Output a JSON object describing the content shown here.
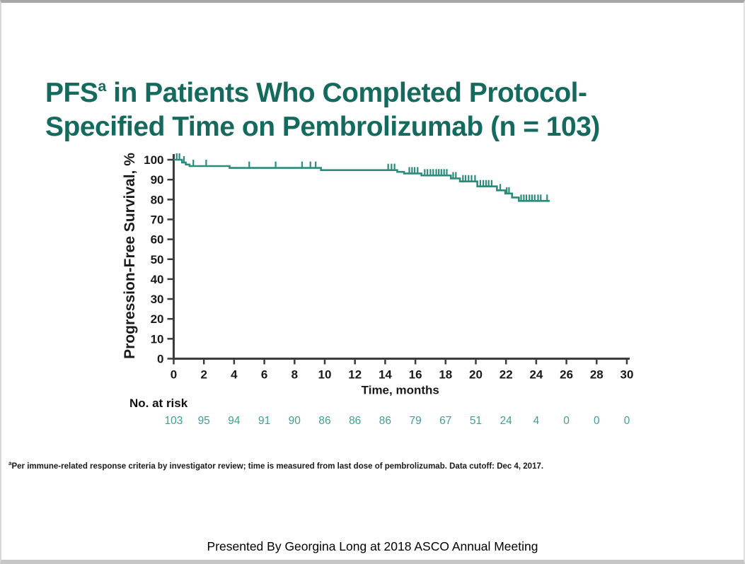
{
  "title": {
    "prefix": "PFS",
    "superscript": "a",
    "line1_rest": " in Patients Who Completed Protocol-",
    "line2": "Specified Time on Pembrolizumab (n = 103)"
  },
  "footnote": {
    "superscript": "a",
    "text": "Per immune-related response criteria by investigator review; time is measured from last dose of pembrolizumab. Data cutoff: Dec 4, 2017."
  },
  "footer": "Presented By Georgina Long at 2018 ASCO Annual Meeting",
  "colors": {
    "title_teal": "#156A5E",
    "curve_teal": "#2B8C7C",
    "risk_number_teal": "#3FA090",
    "axis": "#3C3C3C",
    "text": "#1A1A1A"
  },
  "chart_data": {
    "type": "line",
    "subtype": "kaplan-meier-step-curve",
    "title": "",
    "xlabel": "Time, months",
    "ylabel": "Progression-Free Survival, %",
    "xlim": [
      0,
      30
    ],
    "ylim": [
      0,
      100
    ],
    "xticks": [
      0,
      2,
      4,
      6,
      8,
      10,
      12,
      14,
      16,
      18,
      20,
      22,
      24,
      26,
      28,
      30
    ],
    "yticks": [
      0,
      10,
      20,
      30,
      40,
      50,
      60,
      70,
      80,
      90,
      100
    ],
    "grid": false,
    "legend": "none",
    "series": [
      {
        "name": "PFS",
        "color": "#2B8C7C",
        "steps": [
          [
            0,
            100
          ],
          [
            0.55,
            98.6
          ],
          [
            0.8,
            97.6
          ],
          [
            1.05,
            96.8
          ],
          [
            3.7,
            95.9
          ],
          [
            9.75,
            94.8
          ],
          [
            14.8,
            93.9
          ],
          [
            15.25,
            93.1
          ],
          [
            16.4,
            92.1
          ],
          [
            18.35,
            90.6
          ],
          [
            18.95,
            89.1
          ],
          [
            20.1,
            86.6
          ],
          [
            21.4,
            84.6
          ],
          [
            21.95,
            83.0
          ],
          [
            22.4,
            81.0
          ],
          [
            22.85,
            79.3
          ]
        ],
        "end_time": 24.9,
        "censor_marks": [
          [
            0.2,
            100
          ],
          [
            0.38,
            100
          ],
          [
            0.68,
            98.6
          ],
          [
            1.3,
            96.8
          ],
          [
            2.15,
            96.8
          ],
          [
            5.0,
            95.9
          ],
          [
            6.75,
            95.9
          ],
          [
            8.5,
            95.9
          ],
          [
            9.05,
            95.9
          ],
          [
            9.4,
            95.9
          ],
          [
            14.2,
            94.8
          ],
          [
            14.42,
            94.8
          ],
          [
            14.62,
            94.8
          ],
          [
            15.6,
            93.1
          ],
          [
            15.78,
            93.1
          ],
          [
            15.95,
            93.1
          ],
          [
            16.15,
            93.1
          ],
          [
            16.62,
            92.1
          ],
          [
            16.8,
            92.1
          ],
          [
            17.0,
            92.1
          ],
          [
            17.18,
            92.1
          ],
          [
            17.38,
            92.1
          ],
          [
            17.55,
            92.1
          ],
          [
            17.72,
            92.1
          ],
          [
            17.9,
            92.1
          ],
          [
            18.08,
            92.1
          ],
          [
            18.5,
            90.6
          ],
          [
            18.68,
            90.6
          ],
          [
            19.15,
            89.1
          ],
          [
            19.32,
            89.1
          ],
          [
            19.52,
            89.1
          ],
          [
            19.72,
            89.1
          ],
          [
            19.95,
            89.1
          ],
          [
            20.3,
            86.6
          ],
          [
            20.5,
            86.6
          ],
          [
            20.68,
            86.6
          ],
          [
            20.85,
            86.6
          ],
          [
            21.05,
            86.6
          ],
          [
            21.62,
            84.6
          ],
          [
            22.05,
            83.0
          ],
          [
            22.2,
            83.0
          ],
          [
            23.0,
            79.3
          ],
          [
            23.18,
            79.3
          ],
          [
            23.35,
            79.3
          ],
          [
            23.55,
            79.3
          ],
          [
            23.72,
            79.3
          ],
          [
            23.9,
            79.3
          ],
          [
            24.12,
            79.3
          ],
          [
            24.3,
            79.3
          ],
          [
            24.72,
            79.3
          ]
        ]
      }
    ],
    "at_risk": {
      "label": "No. at risk",
      "times": [
        0,
        2,
        4,
        6,
        8,
        10,
        12,
        14,
        16,
        18,
        20,
        22,
        24,
        26,
        28,
        30
      ],
      "values": [
        103,
        95,
        94,
        91,
        90,
        86,
        86,
        86,
        79,
        67,
        51,
        24,
        4,
        0,
        0,
        0
      ]
    }
  }
}
